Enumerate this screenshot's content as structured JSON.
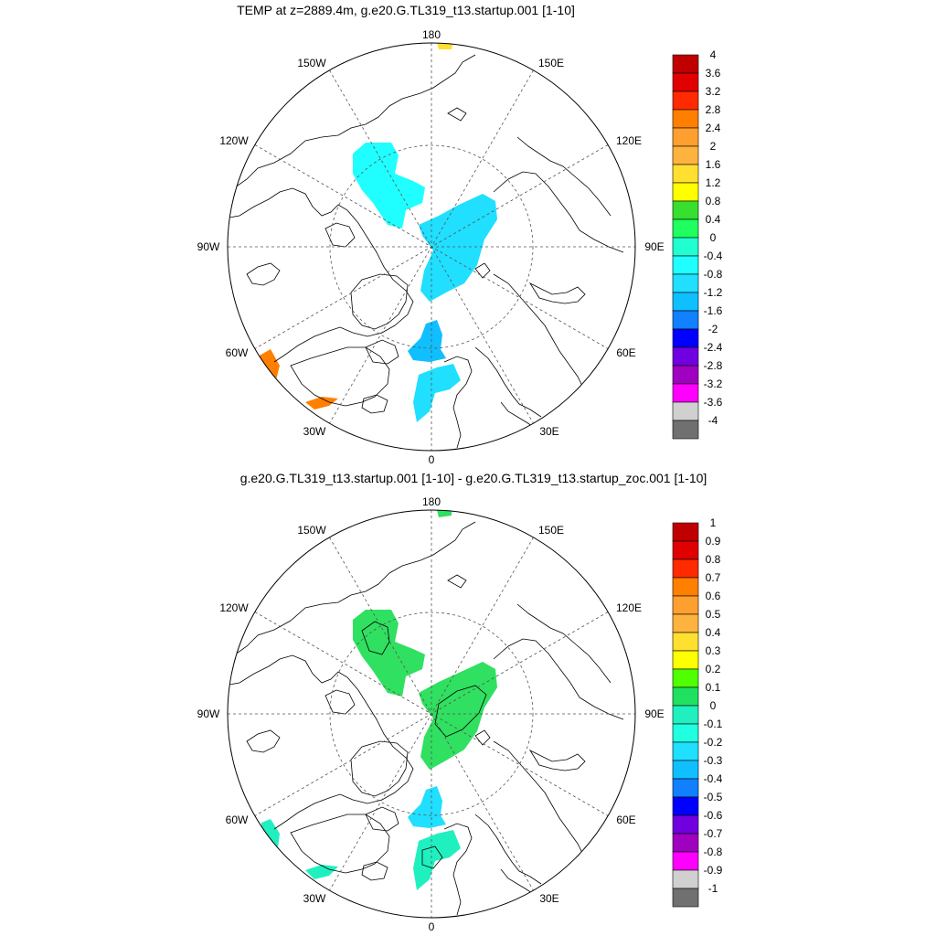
{
  "panels": [
    {
      "title": "TEMP at z=2889.4m, g.e20.G.TL319_t13.startup.001 [1-10]",
      "lon_labels": {
        "n": "180",
        "nw1": "150W",
        "ne1": "150E",
        "nw2": "120W",
        "ne2": "120E",
        "w": "90W",
        "e": "90E",
        "sw2": "60W",
        "se2": "60E",
        "sw1": "30W",
        "se1": "30E",
        "s": "0"
      },
      "colorbar": {
        "labels": [
          "4",
          "3.6",
          "3.2",
          "2.8",
          "2.4",
          "2",
          "1.6",
          "1.2",
          "0.8",
          "0.4",
          "0",
          "-0.4",
          "-0.8",
          "-1.2",
          "-1.6",
          "-2",
          "-2.4",
          "-2.8",
          "-3.2",
          "-3.6",
          "-4"
        ],
        "colors": [
          "#c00000",
          "#e00000",
          "#ff2a00",
          "#ff7f00",
          "#ff9f2f",
          "#ffb33f",
          "#ffdf30",
          "#ffff00",
          "#38df30",
          "#20ff60",
          "#20ffd0",
          "#20ffff",
          "#20dfff",
          "#10bfff",
          "#1080ff",
          "#0000ff",
          "#7000df",
          "#a000c0",
          "#ff00ff",
          "#d0d0d0",
          "#707070"
        ]
      },
      "patches": [
        {
          "name": "beaufort-patch",
          "color": "#20ffff"
        },
        {
          "name": "central-arctic-patch",
          "color": "#20dfff"
        },
        {
          "name": "greenland-sea-patch",
          "color": "#10bfff"
        },
        {
          "name": "nordic-seas-patch",
          "color": "#20dfff"
        },
        {
          "name": "labrador-patch",
          "color": "#ff7f00"
        },
        {
          "name": "north-atlantic-patch",
          "color": "#ff7f00"
        },
        {
          "name": "bering-patch",
          "color": "#ffdf30"
        }
      ]
    },
    {
      "title": "g.e20.G.TL319_t13.startup.001 [1-10] - g.e20.G.TL319_t13.startup_zoc.001 [1-10]",
      "lon_labels": {
        "n": "180",
        "nw1": "150W",
        "ne1": "150E",
        "nw2": "120W",
        "ne2": "120E",
        "w": "90W",
        "e": "90E",
        "sw2": "60W",
        "se2": "60E",
        "sw1": "30W",
        "se1": "30E",
        "s": "0"
      },
      "colorbar": {
        "labels": [
          "1",
          "0.9",
          "0.8",
          "0.7",
          "0.6",
          "0.5",
          "0.4",
          "0.3",
          "0.2",
          "0.1",
          "0",
          "-0.1",
          "-0.2",
          "-0.3",
          "-0.4",
          "-0.5",
          "-0.6",
          "-0.7",
          "-0.8",
          "-0.9",
          "-1"
        ],
        "colors": [
          "#c00000",
          "#e00000",
          "#ff2a00",
          "#ff7f00",
          "#ff9f2f",
          "#ffb33f",
          "#ffdf30",
          "#ffff00",
          "#50ff00",
          "#20e060",
          "#20f0c0",
          "#20ffe0",
          "#20dfff",
          "#10bfff",
          "#1080ff",
          "#0000ff",
          "#7000df",
          "#a000c0",
          "#ff00ff",
          "#d0d0d0",
          "#707070"
        ]
      },
      "patches": [
        {
          "name": "beaufort-patch",
          "color": "#30e060"
        },
        {
          "name": "central-arctic-patch",
          "color": "#30e060"
        },
        {
          "name": "greenland-sea-patch",
          "color": "#20dfff"
        },
        {
          "name": "nordic-seas-patch",
          "color": "#20f0c0"
        },
        {
          "name": "labrador-patch",
          "color": "#20f0c0"
        },
        {
          "name": "north-atlantic-patch",
          "color": "#20f0c0"
        },
        {
          "name": "bering-patch",
          "color": "#30e060"
        }
      ]
    }
  ]
}
